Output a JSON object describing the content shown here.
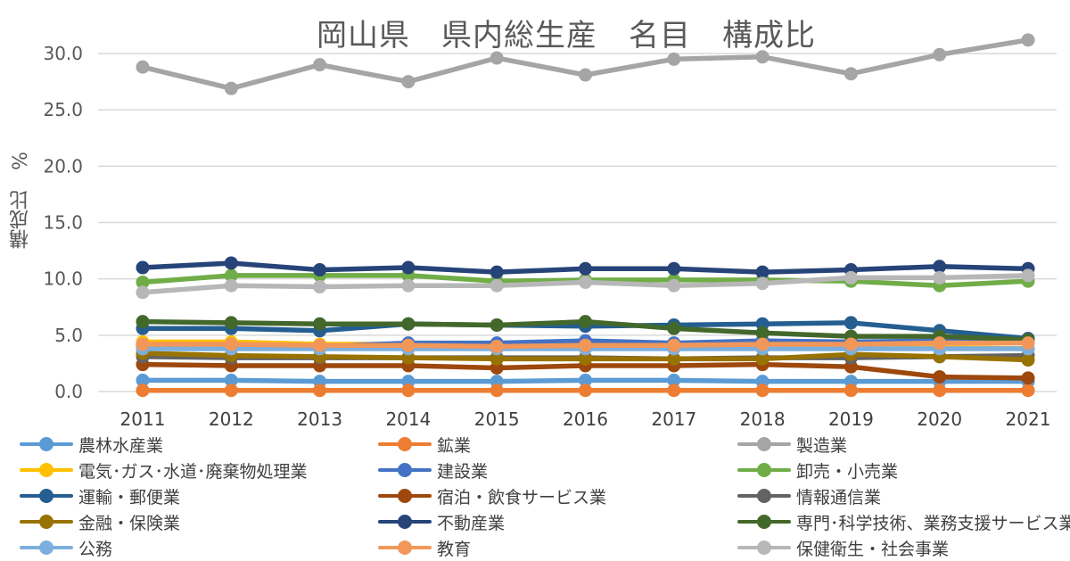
{
  "chart_data": {
    "type": "line",
    "title": "岡山県　県内総生産　名目　構成比",
    "ylabel": "構成比　%",
    "xlabel": "",
    "ylim": [
      0,
      30
    ],
    "yticks": [
      "0.0",
      "5.0",
      "10.0",
      "15.0",
      "20.0",
      "25.0",
      "30.0"
    ],
    "x": [
      "2011",
      "2012",
      "2013",
      "2014",
      "2015",
      "2016",
      "2017",
      "2018",
      "2019",
      "2020",
      "2021"
    ],
    "legend_position": "bottom",
    "series": [
      {
        "name": "農林水産業",
        "color": "#5B9BD5",
        "values": [
          1.0,
          1.0,
          0.9,
          0.9,
          0.9,
          1.0,
          1.0,
          0.9,
          0.9,
          0.9,
          0.9
        ]
      },
      {
        "name": "鉱業",
        "color": "#ED7D31",
        "values": [
          0.1,
          0.1,
          0.1,
          0.1,
          0.1,
          0.1,
          0.1,
          0.1,
          0.1,
          0.1,
          0.1
        ]
      },
      {
        "name": "製造業",
        "color": "#A5A5A5",
        "values": [
          28.8,
          26.9,
          29.0,
          27.5,
          29.6,
          28.1,
          29.5,
          29.7,
          28.2,
          29.9,
          31.2
        ]
      },
      {
        "name": "電気･ガス･水道･廃棄物処理業",
        "color": "#FFC000",
        "values": [
          4.4,
          4.4,
          4.2,
          4.2,
          4.0,
          4.0,
          4.0,
          3.9,
          3.8,
          3.9,
          3.8
        ]
      },
      {
        "name": "建設業",
        "color": "#4472C4",
        "values": [
          4.0,
          4.1,
          4.0,
          4.3,
          4.3,
          4.5,
          4.3,
          4.5,
          4.4,
          4.5,
          4.7
        ]
      },
      {
        "name": "卸売・小売業",
        "color": "#70AD47",
        "values": [
          9.7,
          10.3,
          10.3,
          10.3,
          9.8,
          9.9,
          9.9,
          9.9,
          9.8,
          9.4,
          9.8
        ]
      },
      {
        "name": "運輸・郵便業",
        "color": "#255E91",
        "values": [
          5.6,
          5.6,
          5.4,
          6.0,
          5.9,
          5.8,
          5.9,
          6.0,
          6.1,
          5.4,
          4.7
        ]
      },
      {
        "name": "宿泊・飲食サービス業",
        "color": "#9E480E",
        "values": [
          2.4,
          2.3,
          2.3,
          2.3,
          2.1,
          2.3,
          2.3,
          2.4,
          2.2,
          1.3,
          1.2
        ]
      },
      {
        "name": "情報通信業",
        "color": "#636363",
        "values": [
          3.1,
          3.0,
          3.0,
          3.0,
          3.0,
          3.0,
          2.9,
          3.0,
          3.0,
          3.1,
          3.2
        ]
      },
      {
        "name": "金融・保険業",
        "color": "#997300",
        "values": [
          3.4,
          3.2,
          3.1,
          3.0,
          2.9,
          2.9,
          2.9,
          2.9,
          3.3,
          3.1,
          2.8
        ]
      },
      {
        "name": "不動産業",
        "color": "#264478",
        "values": [
          11.0,
          11.4,
          10.8,
          11.0,
          10.6,
          10.9,
          10.9,
          10.6,
          10.8,
          11.1,
          10.9
        ]
      },
      {
        "name": "専門･科学技術、業務支援サービス業",
        "color": "#43682B",
        "values": [
          6.2,
          6.1,
          6.0,
          6.0,
          5.9,
          6.2,
          5.6,
          5.2,
          4.9,
          4.9,
          4.6
        ]
      },
      {
        "name": "公務",
        "color": "#7CAFDD",
        "values": [
          3.8,
          3.8,
          3.8,
          3.8,
          3.8,
          3.8,
          3.8,
          3.8,
          3.8,
          3.8,
          3.8
        ]
      },
      {
        "name": "教育",
        "color": "#F1975A",
        "values": [
          4.2,
          4.2,
          4.1,
          4.1,
          4.0,
          4.1,
          4.1,
          4.2,
          4.2,
          4.3,
          4.3
        ]
      },
      {
        "name": "保健衛生・社会事業",
        "color": "#B7B7B7",
        "values": [
          8.8,
          9.4,
          9.3,
          9.4,
          9.4,
          9.7,
          9.4,
          9.6,
          10.1,
          10.1,
          10.3
        ]
      }
    ]
  }
}
